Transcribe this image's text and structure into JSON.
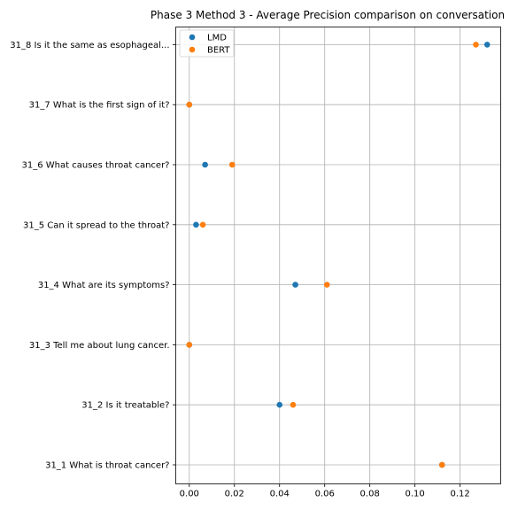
{
  "chart_data": {
    "type": "scatter",
    "title": "Phase 3 Method 3 - Average Precision comparison on conversation",
    "xlabel": "",
    "ylabel": "",
    "xlim": [
      -0.006,
      0.138
    ],
    "xticks": [
      0.0,
      0.02,
      0.04,
      0.06,
      0.08,
      0.1,
      0.12
    ],
    "xtick_labels": [
      "0.00",
      "0.02",
      "0.04",
      "0.06",
      "0.08",
      "0.10",
      "0.12"
    ],
    "grid": true,
    "legend_position": "top-left",
    "categories": [
      "31_1 What is throat cancer?",
      "31_2 Is it treatable?",
      "31_3 Tell me about lung cancer.",
      "31_4 What are its symptoms?",
      "31_5 Can it spread to the throat?",
      "31_6 What causes throat cancer?",
      "31_7 What is the first sign of it?",
      "31_8 Is it the same as esophageal..."
    ],
    "series": [
      {
        "name": "LMD",
        "color": "#1f77b4",
        "values": [
          0.112,
          0.04,
          0.0,
          0.047,
          0.003,
          0.007,
          0.0,
          0.132
        ]
      },
      {
        "name": "BERT",
        "color": "#ff7f0e",
        "values": [
          0.112,
          0.046,
          0.0,
          0.061,
          0.006,
          0.019,
          0.0,
          0.127
        ]
      }
    ]
  }
}
